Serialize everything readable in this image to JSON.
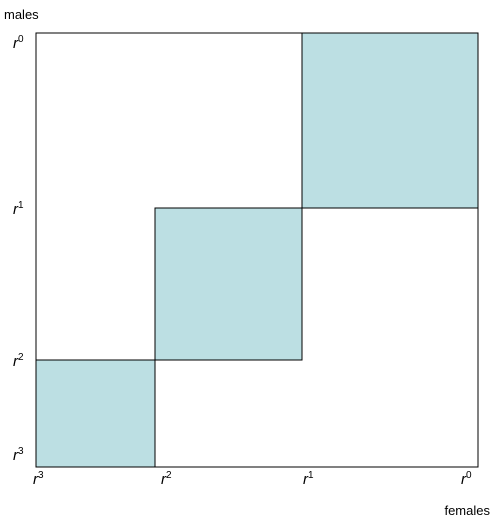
{
  "diagram": {
    "y_axis_label": "males",
    "x_axis_label": "females",
    "y_ticks": [
      {
        "base": "r",
        "sup": "0"
      },
      {
        "base": "r",
        "sup": "1"
      },
      {
        "base": "r",
        "sup": "2"
      },
      {
        "base": "r",
        "sup": "3"
      }
    ],
    "x_ticks": [
      {
        "base": "r",
        "sup": "3"
      },
      {
        "base": "r",
        "sup": "2"
      },
      {
        "base": "r",
        "sup": "1"
      },
      {
        "base": "r",
        "sup": "0"
      }
    ]
  }
}
